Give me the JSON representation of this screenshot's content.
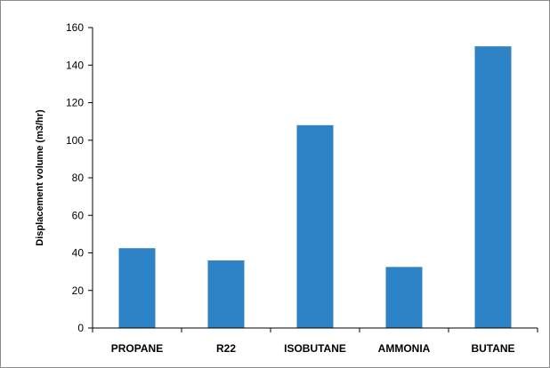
{
  "chart_data": {
    "type": "bar",
    "title": "",
    "xlabel": "",
    "ylabel": "Displacement volume (m3/hr)",
    "categories": [
      "PROPANE",
      "R22",
      "ISOBUTANE",
      "AMMONIA",
      "BUTANE"
    ],
    "values": [
      42.5,
      36,
      108,
      32.5,
      150
    ],
    "ylim": [
      0,
      160
    ],
    "yticks": [
      0,
      20,
      40,
      60,
      80,
      100,
      120,
      140,
      160
    ],
    "grid": false,
    "legend": "none",
    "bar_color": "#2e83c6",
    "axis_color": "#000000"
  }
}
